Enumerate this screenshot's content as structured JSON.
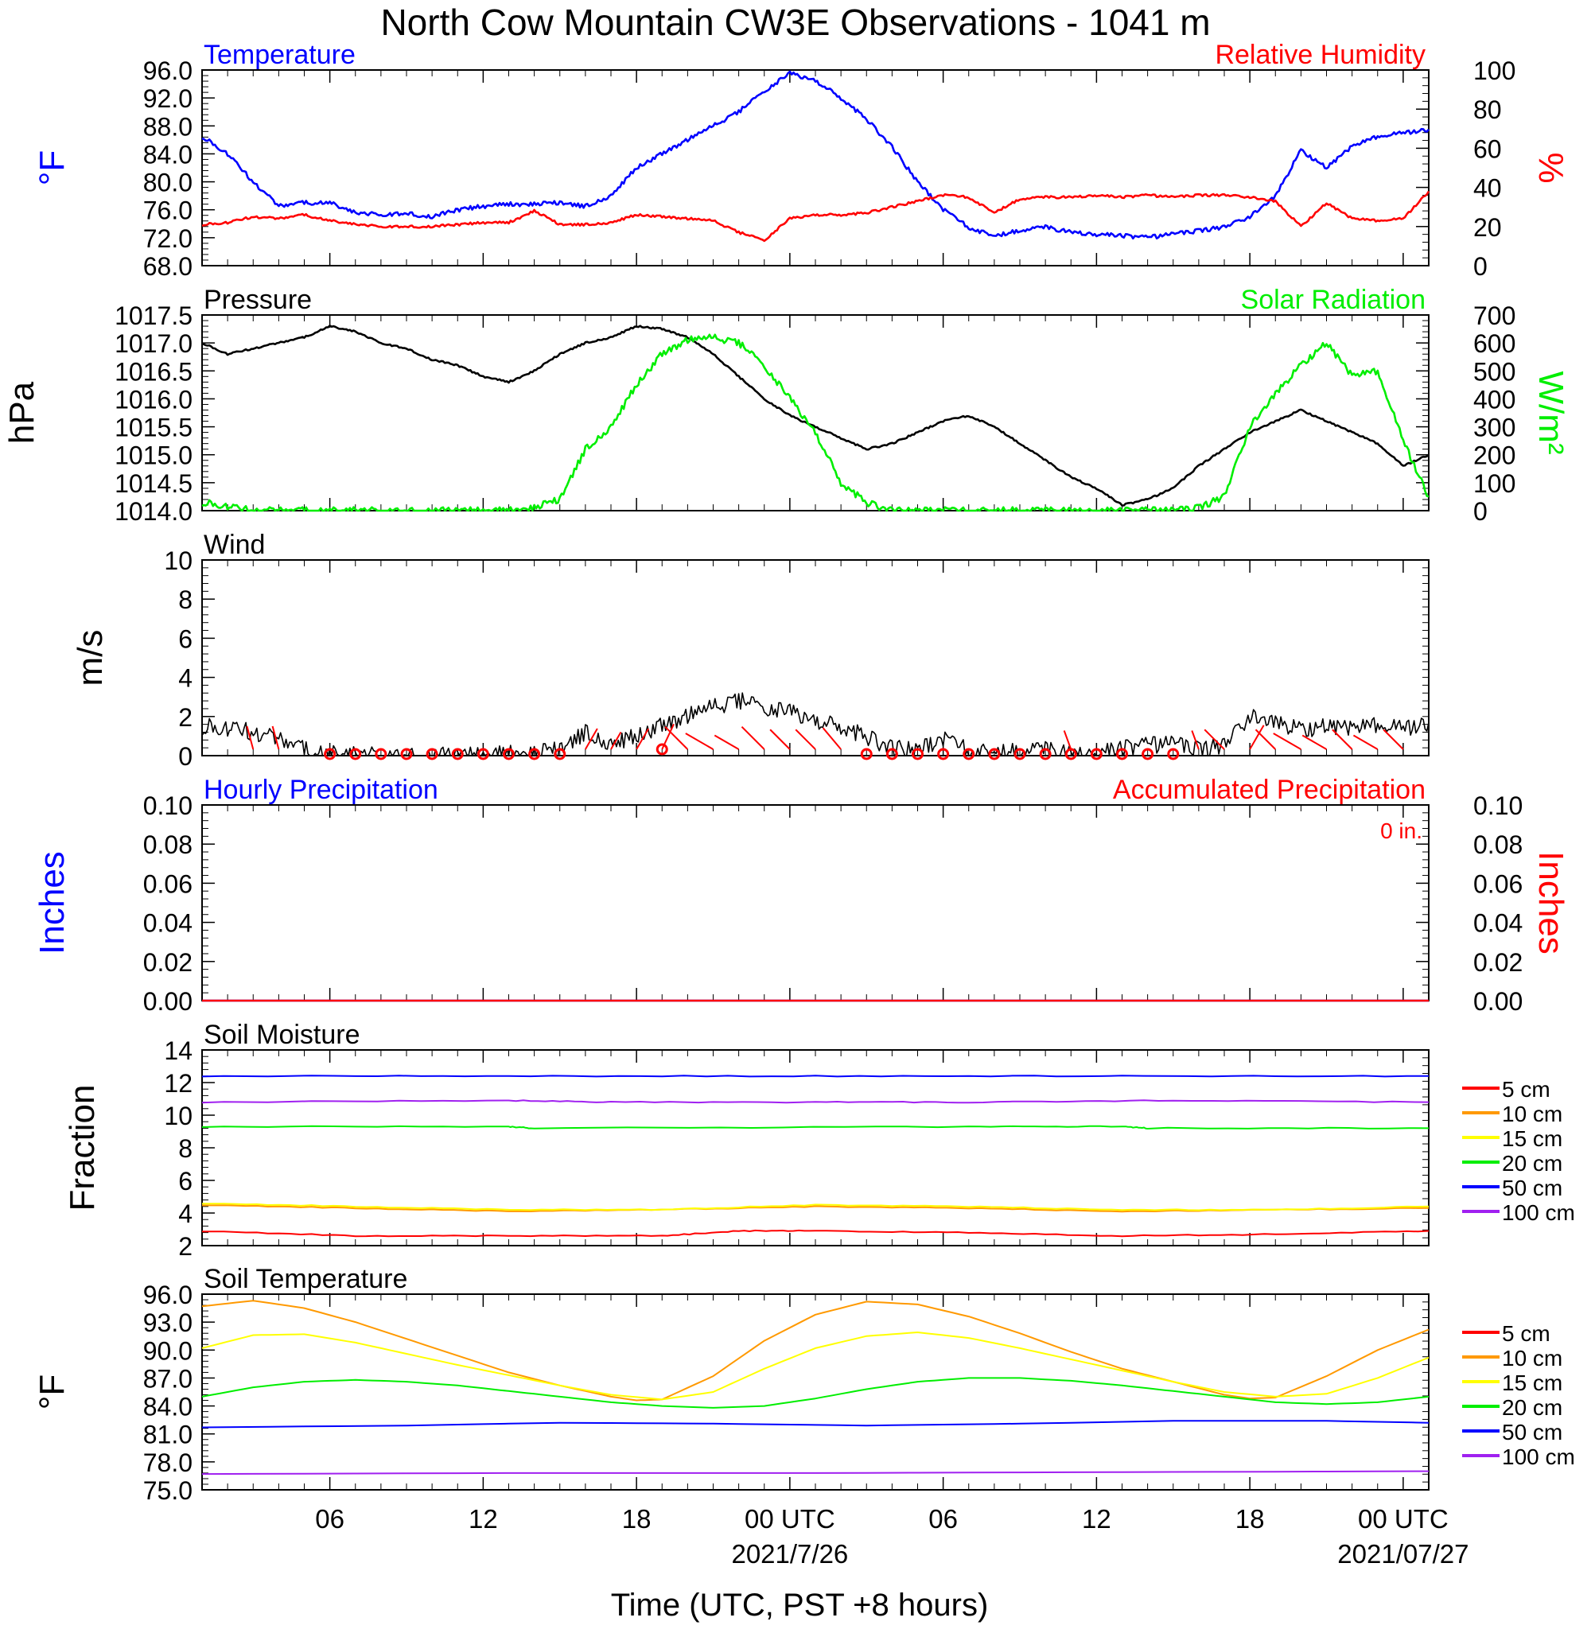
{
  "title": "North Cow Mountain CW3E Observations - 1041 m",
  "x_axis": {
    "label": "Time (UTC, PST +8 hours)",
    "tick_labels": [
      "06",
      "12",
      "18",
      "00 UTC",
      "06",
      "12",
      "18",
      "00 UTC"
    ],
    "date_labels": [
      "2021/7/26",
      "2021/07/27"
    ],
    "start": "2021-07-25 01:00 UTC",
    "end": "2021-07-27 01:00 UTC"
  },
  "colors": {
    "blue": "#0000ff",
    "red": "#ff0000",
    "green": "#00ee00",
    "black": "#000000",
    "orange": "#ff9900",
    "yellow": "#ffff00",
    "purple": "#a020f0"
  },
  "chart_data": [
    {
      "type": "line",
      "panel": "temperature_humidity",
      "left_title": "Temperature",
      "right_title": "Relative Humidity",
      "ylabel_left": "°F",
      "ylabel_right": "%",
      "ylim_left": [
        68,
        96
      ],
      "ylim_right": [
        0,
        100
      ],
      "yticks_left": [
        "68.0",
        "72.0",
        "76.0",
        "80.0",
        "84.0",
        "88.0",
        "92.0",
        "96.0"
      ],
      "yticks_right": [
        "0",
        "20",
        "40",
        "60",
        "80",
        "100"
      ],
      "series": [
        {
          "name": "Temperature",
          "axis": "left",
          "color": "#0000ff",
          "x": [
            0,
            1,
            2,
            3,
            4,
            5,
            6,
            7,
            8,
            9,
            10,
            11,
            12,
            13,
            14,
            15,
            16,
            17,
            18,
            19,
            20,
            21,
            22,
            23,
            24,
            25,
            26,
            27,
            28,
            29,
            30,
            31,
            32,
            33,
            34,
            35,
            36,
            37,
            38,
            39,
            40,
            41,
            42,
            43,
            44,
            45,
            46,
            47,
            48
          ],
          "y": [
            86.5,
            84,
            80,
            76.5,
            77,
            77,
            75.5,
            75.3,
            75.5,
            75,
            76,
            76.5,
            76.8,
            76.8,
            77,
            76.5,
            78,
            82,
            84,
            86,
            88,
            90,
            93,
            95.5,
            94.5,
            92,
            89,
            85,
            80,
            76,
            73.5,
            72.2,
            73,
            73.5,
            72.8,
            72.5,
            72.3,
            72,
            72.5,
            73,
            73.5,
            75,
            78,
            84.5,
            82,
            85,
            86.5,
            87,
            87.5
          ]
        },
        {
          "name": "Relative Humidity",
          "axis": "right",
          "color": "#ff0000",
          "x": [
            0,
            1,
            2,
            3,
            4,
            5,
            6,
            7,
            8,
            9,
            10,
            11,
            12,
            13,
            14,
            15,
            16,
            17,
            18,
            19,
            20,
            21,
            22,
            23,
            24,
            25,
            26,
            27,
            28,
            29,
            30,
            31,
            32,
            33,
            34,
            35,
            36,
            37,
            38,
            39,
            40,
            41,
            42,
            43,
            44,
            45,
            46,
            47,
            48
          ],
          "y": [
            21,
            22,
            25,
            24,
            26,
            23,
            21,
            20,
            20,
            20,
            21,
            22,
            22,
            28,
            21,
            21,
            22,
            26,
            25,
            24,
            23,
            17,
            13,
            24,
            26,
            26,
            27,
            30,
            33,
            36,
            35,
            27,
            34,
            35,
            35,
            36,
            35,
            36,
            35,
            36,
            36,
            35,
            33,
            20,
            32,
            24,
            23,
            24,
            38
          ]
        }
      ]
    },
    {
      "type": "line",
      "panel": "pressure_solar",
      "left_title": "Pressure",
      "right_title": "Solar Radiation",
      "ylabel_left": "hPa",
      "ylabel_right": "W/m²",
      "ylim_left": [
        1014.0,
        1017.5
      ],
      "ylim_right": [
        0,
        700
      ],
      "yticks_left": [
        "1014.0",
        "1014.5",
        "1015.0",
        "1015.5",
        "1016.0",
        "1016.5",
        "1017.0",
        "1017.5"
      ],
      "yticks_right": [
        "0",
        "100",
        "200",
        "300",
        "400",
        "500",
        "600",
        "700"
      ],
      "series": [
        {
          "name": "Pressure",
          "axis": "left",
          "color": "#000000",
          "x": [
            0,
            1,
            2,
            3,
            4,
            5,
            6,
            7,
            8,
            9,
            10,
            11,
            12,
            13,
            14,
            15,
            16,
            17,
            18,
            19,
            20,
            21,
            22,
            23,
            24,
            25,
            26,
            27,
            28,
            29,
            30,
            31,
            32,
            33,
            34,
            35,
            36,
            37,
            38,
            39,
            40,
            41,
            42,
            43,
            44,
            45,
            46,
            47,
            48
          ],
          "y": [
            1017.0,
            1016.8,
            1016.9,
            1017.0,
            1017.1,
            1017.3,
            1017.2,
            1017.0,
            1016.9,
            1016.7,
            1016.6,
            1016.4,
            1016.3,
            1016.5,
            1016.8,
            1017.0,
            1017.1,
            1017.3,
            1017.25,
            1017.1,
            1016.8,
            1016.4,
            1016.0,
            1015.7,
            1015.5,
            1015.3,
            1015.1,
            1015.2,
            1015.4,
            1015.6,
            1015.7,
            1015.5,
            1015.2,
            1014.9,
            1014.6,
            1014.4,
            1014.1,
            1014.2,
            1014.4,
            1014.8,
            1015.1,
            1015.4,
            1015.6,
            1015.8,
            1015.6,
            1015.4,
            1015.2,
            1014.8,
            1015.0
          ]
        },
        {
          "name": "Solar Radiation",
          "axis": "right",
          "color": "#00ee00",
          "x": [
            0,
            1,
            2,
            3,
            4,
            5,
            6,
            7,
            8,
            9,
            10,
            11,
            12,
            13,
            14,
            15,
            16,
            17,
            18,
            19,
            20,
            21,
            22,
            23,
            24,
            25,
            26,
            27,
            28,
            29,
            30,
            31,
            32,
            33,
            34,
            35,
            36,
            37,
            38,
            39,
            40,
            41,
            42,
            43,
            44,
            45,
            46,
            47,
            48
          ],
          "y": [
            30,
            15,
            0,
            0,
            0,
            0,
            0,
            0,
            0,
            0,
            0,
            0,
            0,
            10,
            40,
            220,
            300,
            450,
            560,
            610,
            620,
            600,
            520,
            400,
            280,
            100,
            30,
            0,
            0,
            0,
            0,
            0,
            0,
            0,
            0,
            0,
            0,
            0,
            0,
            10,
            50,
            300,
            420,
            520,
            600,
            480,
            500,
            250,
            50
          ]
        }
      ]
    },
    {
      "type": "line",
      "panel": "wind",
      "left_title": "Wind",
      "ylabel_left": "m/s",
      "ylim_left": [
        0,
        10
      ],
      "yticks_left": [
        "0",
        "2",
        "4",
        "6",
        "8",
        "10"
      ],
      "series": [
        {
          "name": "Wind",
          "axis": "left",
          "color": "#000000",
          "x": [
            0,
            1,
            2,
            3,
            4,
            5,
            6,
            7,
            8,
            9,
            10,
            11,
            12,
            13,
            14,
            15,
            16,
            17,
            18,
            19,
            20,
            21,
            22,
            23,
            24,
            25,
            26,
            27,
            28,
            29,
            30,
            31,
            32,
            33,
            34,
            35,
            36,
            37,
            38,
            39,
            40,
            41,
            42,
            43,
            44,
            45,
            46,
            47,
            48
          ],
          "y": [
            1.5,
            1.4,
            1.2,
            0.8,
            0.3,
            0.1,
            0,
            0,
            0,
            0,
            0,
            0,
            0.1,
            0.1,
            0.3,
            1.2,
            0.6,
            1.0,
            1.5,
            2.0,
            2.5,
            2.8,
            2.5,
            2.2,
            1.8,
            1.5,
            1.0,
            0.4,
            0.3,
            0.8,
            0.3,
            0.1,
            0.2,
            0.3,
            0.1,
            0.1,
            0.4,
            0.5,
            0.6,
            0.3,
            0.5,
            2.0,
            1.8,
            1.3,
            1.5,
            1.3,
            1.6,
            1.4,
            1.7
          ]
        }
      ]
    },
    {
      "type": "line",
      "panel": "precipitation",
      "left_title": "Hourly Precipitation",
      "right_title": "Accumulated Precipitation",
      "total_label": "0 in.",
      "ylabel_left": "Inches",
      "ylabel_right": "Inches",
      "ylim_left": [
        0,
        0.1
      ],
      "ylim_right": [
        0,
        0.1
      ],
      "yticks_left": [
        "0.00",
        "0.02",
        "0.04",
        "0.06",
        "0.08",
        "0.10"
      ],
      "yticks_right": [
        "0.00",
        "0.02",
        "0.04",
        "0.06",
        "0.08",
        "0.10"
      ],
      "series": [
        {
          "name": "Hourly Precipitation",
          "axis": "left",
          "color": "#0000ff",
          "x": [
            0,
            48
          ],
          "y": [
            0,
            0
          ]
        },
        {
          "name": "Accumulated Precipitation",
          "axis": "right",
          "color": "#ff0000",
          "x": [
            0,
            48
          ],
          "y": [
            0,
            0
          ]
        }
      ]
    },
    {
      "type": "line",
      "panel": "soil_moisture",
      "left_title": "Soil Moisture",
      "ylabel_left": "Fraction",
      "ylim_left": [
        2,
        14
      ],
      "yticks_left": [
        "2",
        "4",
        "6",
        "8",
        "10",
        "12",
        "14"
      ],
      "series": [
        {
          "name": "5 cm",
          "color": "#ff0000",
          "x": [
            0,
            6,
            12,
            18,
            21,
            24,
            30,
            36,
            42,
            48
          ],
          "y": [
            2.9,
            2.6,
            2.6,
            2.6,
            2.9,
            2.9,
            2.8,
            2.6,
            2.7,
            2.9
          ]
        },
        {
          "name": "10 cm",
          "color": "#ff9900",
          "x": [
            0,
            6,
            12,
            18,
            24,
            30,
            36,
            42,
            48
          ],
          "y": [
            4.5,
            4.3,
            4.1,
            4.2,
            4.4,
            4.3,
            4.1,
            4.2,
            4.3
          ]
        },
        {
          "name": "15 cm",
          "color": "#ffff00",
          "x": [
            0,
            6,
            12,
            18,
            24,
            30,
            36,
            42,
            48
          ],
          "y": [
            4.6,
            4.4,
            4.2,
            4.2,
            4.5,
            4.4,
            4.2,
            4.2,
            4.4
          ]
        },
        {
          "name": "20 cm",
          "color": "#00ee00",
          "x": [
            0,
            12,
            13,
            30,
            36,
            37,
            48
          ],
          "y": [
            9.3,
            9.3,
            9.2,
            9.3,
            9.3,
            9.2,
            9.2
          ]
        },
        {
          "name": "50 cm",
          "color": "#0000ff",
          "x": [
            0,
            12,
            24,
            36,
            48
          ],
          "y": [
            12.4,
            12.4,
            12.4,
            12.4,
            12.4
          ]
        },
        {
          "name": "100 cm",
          "color": "#a020f0",
          "x": [
            0,
            12,
            16,
            24,
            30,
            38,
            48
          ],
          "y": [
            10.8,
            10.9,
            10.8,
            10.8,
            10.8,
            10.9,
            10.8
          ]
        }
      ]
    },
    {
      "type": "line",
      "panel": "soil_temperature",
      "left_title": "Soil Temperature",
      "ylabel_left": "°F",
      "ylim_left": [
        75,
        96
      ],
      "yticks_left": [
        "75.0",
        "78.0",
        "81.0",
        "84.0",
        "87.0",
        "90.0",
        "93.0",
        "96.0"
      ],
      "series": [
        {
          "name": "5 cm",
          "color": "#ff0000",
          "x": [],
          "y": []
        },
        {
          "name": "10 cm",
          "color": "#ff9900",
          "x": [
            0,
            2,
            4,
            6,
            8,
            10,
            12,
            14,
            16,
            17,
            18,
            20,
            22,
            24,
            26,
            28,
            30,
            32,
            34,
            36,
            38,
            40,
            41,
            42,
            44,
            46,
            48
          ],
          "y": [
            94.7,
            95.3,
            94.5,
            93,
            91.2,
            89.4,
            87.6,
            86.2,
            85,
            84.6,
            84.7,
            87.2,
            91,
            93.8,
            95.2,
            94.9,
            93.6,
            91.8,
            89.8,
            88,
            86.6,
            85.2,
            84.8,
            84.9,
            87.2,
            90,
            92.2
          ]
        },
        {
          "name": "15 cm",
          "color": "#ffff00",
          "x": [
            0,
            2,
            4,
            6,
            8,
            10,
            12,
            14,
            16,
            18,
            20,
            22,
            24,
            26,
            28,
            30,
            32,
            34,
            36,
            38,
            40,
            42,
            44,
            46,
            48
          ],
          "y": [
            90.2,
            91.6,
            91.7,
            90.8,
            89.6,
            88.4,
            87.3,
            86.2,
            85.2,
            84.7,
            85.5,
            88,
            90.2,
            91.5,
            91.9,
            91.3,
            90.2,
            89,
            87.8,
            86.6,
            85.5,
            85,
            85.3,
            87,
            89.2
          ]
        },
        {
          "name": "20 cm",
          "color": "#00ee00",
          "x": [
            0,
            2,
            4,
            6,
            8,
            10,
            12,
            14,
            16,
            18,
            20,
            22,
            24,
            26,
            28,
            30,
            32,
            34,
            36,
            38,
            40,
            42,
            44,
            46,
            48
          ],
          "y": [
            85,
            86,
            86.6,
            86.8,
            86.6,
            86.2,
            85.6,
            85,
            84.4,
            84,
            83.8,
            84,
            84.8,
            85.8,
            86.6,
            87,
            87,
            86.7,
            86.2,
            85.6,
            85,
            84.4,
            84.2,
            84.4,
            85
          ]
        },
        {
          "name": "50 cm",
          "color": "#0000ff",
          "x": [
            0,
            8,
            14,
            20,
            26,
            32,
            38,
            44,
            48
          ],
          "y": [
            81.7,
            81.9,
            82.2,
            82.1,
            81.9,
            82.1,
            82.4,
            82.4,
            82.2
          ]
        },
        {
          "name": "100 cm",
          "color": "#a020f0",
          "x": [
            0,
            12,
            24,
            36,
            48
          ],
          "y": [
            76.7,
            76.8,
            76.8,
            76.9,
            77.0
          ]
        }
      ]
    }
  ]
}
